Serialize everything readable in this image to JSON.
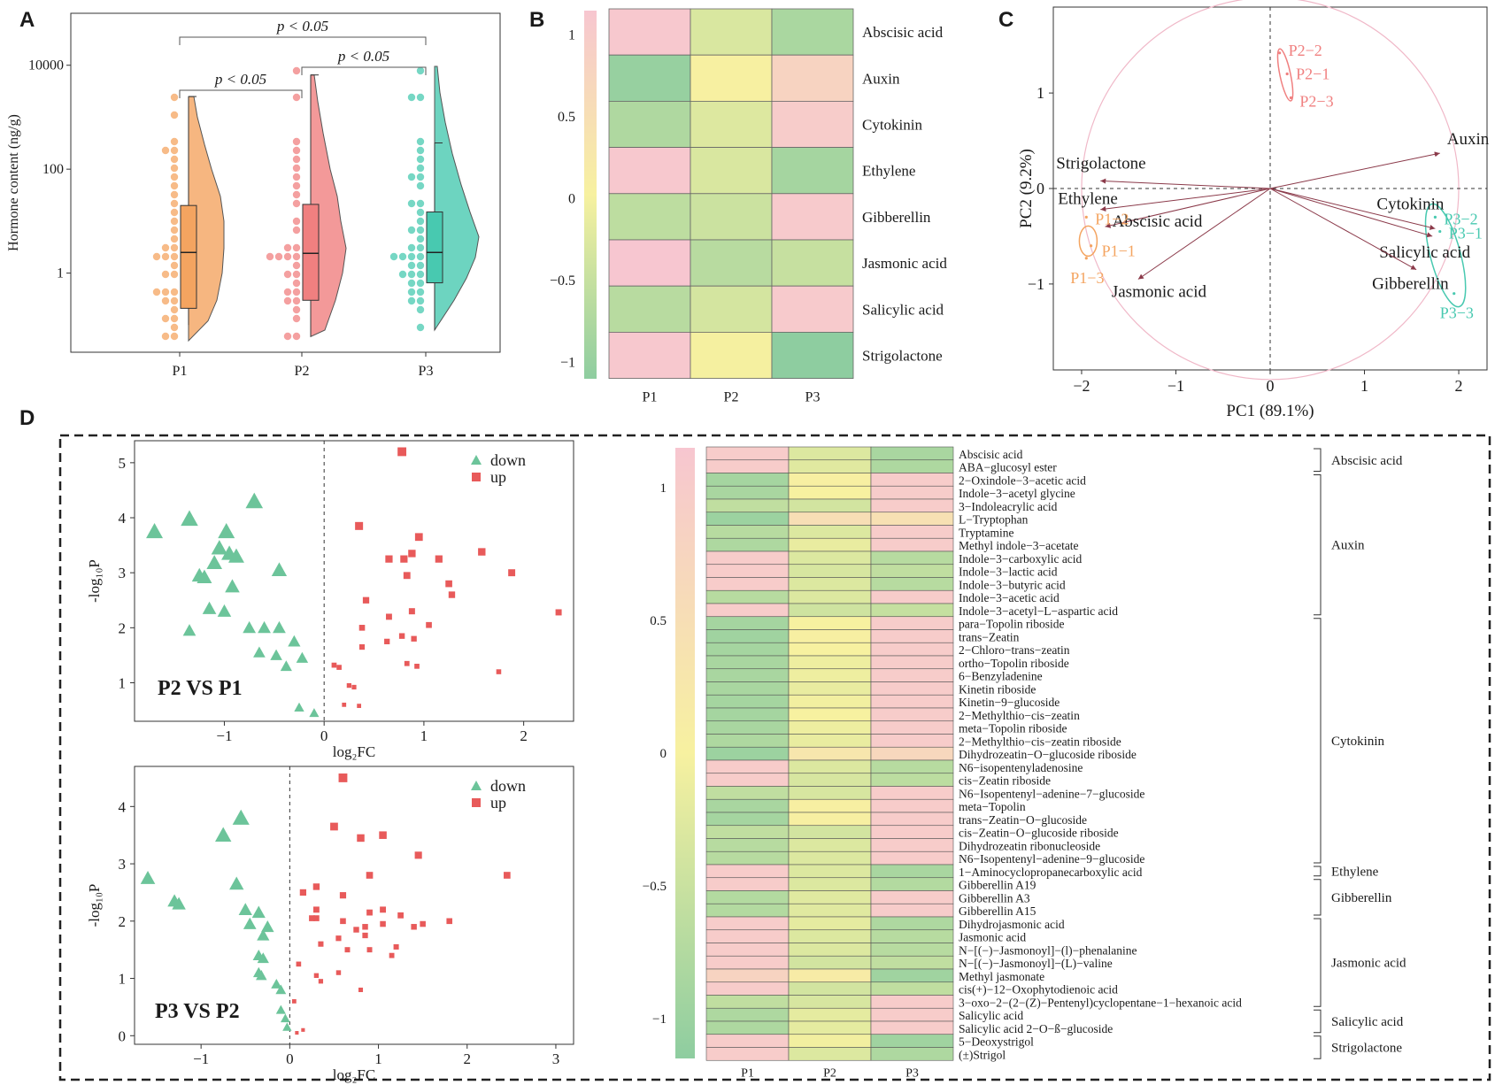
{
  "panel_labels": [
    "A",
    "B",
    "C",
    "D"
  ],
  "colors": {
    "orange": "#F4A460",
    "pink_red": "#F08080",
    "teal": "#48C9B0",
    "heat_high": "#F7C6D0",
    "heat_mid": "#F7F1A0",
    "heat_low": "#8ECDA0",
    "up": "#E85A5A",
    "down": "#6CC49A",
    "arrow": "#8B3A4A",
    "circle": "#F0B8C8"
  },
  "chart_data": [
    {
      "id": "A",
      "type": "raincloud",
      "title": "",
      "xlabel": "",
      "ylabel": "Hormone content (ng/g)",
      "yscale": "log",
      "ylim": [
        0.03,
        100000
      ],
      "yticks": [
        1,
        100,
        10000
      ],
      "ytick_labels": [
        "1",
        "100",
        "10000"
      ],
      "categories": [
        "P1",
        "P2",
        "P3"
      ],
      "boxes": [
        {
          "q1": 0.21,
          "median": 2.5,
          "q3": 20,
          "whisker_low": 0.1,
          "whisker_high": 2500
        },
        {
          "q1": 0.3,
          "median": 2.4,
          "q3": 21,
          "whisker_low": 0.06,
          "whisker_high": 6500
        },
        {
          "q1": 0.65,
          "median": 2.5,
          "q3": 15,
          "whisker_low": 0.08,
          "whisker_high": 320
        }
      ],
      "comparisons": [
        {
          "from": "P1",
          "to": "P2",
          "label": "p < 0.05"
        },
        {
          "from": "P2",
          "to": "P3",
          "label": "p < 0.05"
        },
        {
          "from": "P1",
          "to": "P3",
          "label": "p < 0.05"
        }
      ]
    },
    {
      "id": "B",
      "type": "heatmap",
      "columns": [
        "P1",
        "P2",
        "P3"
      ],
      "rows": [
        "Abscisic acid",
        "Auxin",
        "Cytokinin",
        "Ethylene",
        "Gibberellin",
        "Jasmonic acid",
        "Salicylic acid",
        "Strigolactone"
      ],
      "values": [
        [
          1.1,
          -0.3,
          -0.8
        ],
        [
          -1.0,
          0.05,
          0.8
        ],
        [
          -0.75,
          -0.25,
          1.0
        ],
        [
          1.1,
          -0.3,
          -0.85
        ],
        [
          -0.6,
          -0.45,
          1.05
        ],
        [
          1.15,
          -0.65,
          -0.5
        ],
        [
          -0.65,
          -0.35,
          1.05
        ],
        [
          1.1,
          0.0,
          -1.1
        ]
      ],
      "colorbar_range": [
        -1.1,
        1.15
      ],
      "colorbar_ticks": [
        1,
        0.5,
        0,
        -0.5,
        -1
      ],
      "colorbar_tick_labels": [
        "1",
        "0.5",
        "0",
        "−0.5",
        "−1"
      ]
    },
    {
      "id": "C",
      "type": "pca_biplot",
      "xlabel": "PC1 (89.1%)",
      "ylabel": "PC2 (9.2%)",
      "xlim": [
        -2.3,
        2.3
      ],
      "ylim": [
        -1.9,
        1.9
      ],
      "xticks": [
        -2,
        -1,
        0,
        1,
        2
      ],
      "xtick_labels": [
        "−2",
        "−1",
        "0",
        "1",
        "2"
      ],
      "yticks": [
        1,
        0,
        -1
      ],
      "ytick_labels": [
        "1",
        "0",
        "−1"
      ],
      "samples": [
        {
          "label": "P1−2",
          "x": -1.95,
          "y": -0.3,
          "group": "P1"
        },
        {
          "label": "P1−1",
          "x": -1.9,
          "y": -0.6,
          "group": "P1"
        },
        {
          "label": "P1−3",
          "x": -1.95,
          "y": -0.73,
          "group": "P1"
        },
        {
          "label": "P2−2",
          "x": 0.1,
          "y": 1.42,
          "group": "P2"
        },
        {
          "label": "P2−1",
          "x": 0.18,
          "y": 1.2,
          "group": "P2"
        },
        {
          "label": "P2−3",
          "x": 0.22,
          "y": 0.95,
          "group": "P2"
        },
        {
          "label": "P3−2",
          "x": 1.75,
          "y": -0.3,
          "group": "P3"
        },
        {
          "label": "P3−1",
          "x": 1.8,
          "y": -0.45,
          "group": "P3"
        },
        {
          "label": "P3−3",
          "x": 1.95,
          "y": -1.1,
          "group": "P3"
        }
      ],
      "loadings": [
        {
          "label": "Auxin",
          "x": 1.8,
          "y": 0.37
        },
        {
          "label": "Strigolactone",
          "x": -1.8,
          "y": 0.08
        },
        {
          "label": "Ethylene",
          "x": -1.8,
          "y": -0.22
        },
        {
          "label": "Abscisic acid",
          "x": -1.75,
          "y": -0.4
        },
        {
          "label": "Jasmonic acid",
          "x": -1.4,
          "y": -0.95
        },
        {
          "label": "Cytokinin",
          "x": 1.75,
          "y": -0.42
        },
        {
          "label": "Salicylic acid",
          "x": 1.72,
          "y": -0.5
        },
        {
          "label": "Gibberellin",
          "x": 1.55,
          "y": -0.85
        }
      ]
    },
    {
      "id": "D-volcano-1",
      "type": "scatter",
      "title": "P2 VS P1",
      "xlabel": "log₂FC",
      "ylabel": "-log₁₀P",
      "xlim": [
        -1.9,
        2.5
      ],
      "ylim": [
        0.3,
        5.4
      ],
      "xticks": [
        -1,
        0,
        1,
        2
      ],
      "xtick_labels": [
        "−1",
        "0",
        "1",
        "2"
      ],
      "yticks": [
        1,
        2,
        3,
        4,
        5
      ],
      "ytick_labels": [
        "1",
        "2",
        "3",
        "4",
        "5"
      ],
      "legend": [
        "down",
        "up"
      ],
      "down": [
        [
          -1.7,
          3.75
        ],
        [
          -1.35,
          3.98
        ],
        [
          -0.98,
          3.75
        ],
        [
          -0.7,
          4.3
        ],
        [
          -0.95,
          3.35
        ],
        [
          -1.05,
          3.45
        ],
        [
          -0.88,
          3.3
        ],
        [
          -1.1,
          3.18
        ],
        [
          -1.25,
          2.95
        ],
        [
          -1.2,
          2.92
        ],
        [
          -0.92,
          2.75
        ],
        [
          -0.45,
          3.05
        ],
        [
          -1.15,
          2.35
        ],
        [
          -1.0,
          2.3
        ],
        [
          -1.35,
          1.95
        ],
        [
          -0.75,
          2.0
        ],
        [
          -0.6,
          2.0
        ],
        [
          -0.45,
          2.0
        ],
        [
          -0.3,
          1.75
        ],
        [
          -0.65,
          1.55
        ],
        [
          -0.48,
          1.5
        ],
        [
          -0.38,
          1.3
        ],
        [
          -0.22,
          1.45
        ],
        [
          -0.25,
          0.55
        ],
        [
          -0.1,
          0.45
        ]
      ],
      "up": [
        [
          0.78,
          5.2
        ],
        [
          0.35,
          3.85
        ],
        [
          0.95,
          3.65
        ],
        [
          0.88,
          3.35
        ],
        [
          0.65,
          3.25
        ],
        [
          0.8,
          3.25
        ],
        [
          1.15,
          3.25
        ],
        [
          1.58,
          3.38
        ],
        [
          0.83,
          2.95
        ],
        [
          1.25,
          2.8
        ],
        [
          1.88,
          3.0
        ],
        [
          1.28,
          2.6
        ],
        [
          0.42,
          2.5
        ],
        [
          2.35,
          2.28
        ],
        [
          0.65,
          2.2
        ],
        [
          0.88,
          2.3
        ],
        [
          1.05,
          2.05
        ],
        [
          0.38,
          2.0
        ],
        [
          0.78,
          1.85
        ],
        [
          0.63,
          1.75
        ],
        [
          0.9,
          1.8
        ],
        [
          0.38,
          1.65
        ],
        [
          0.83,
          1.35
        ],
        [
          0.93,
          1.3
        ],
        [
          1.75,
          1.2
        ],
        [
          0.1,
          1.32
        ],
        [
          0.15,
          1.28
        ],
        [
          0.25,
          0.95
        ],
        [
          0.3,
          0.92
        ],
        [
          0.2,
          0.6
        ],
        [
          0.35,
          0.58
        ]
      ]
    },
    {
      "id": "D-volcano-2",
      "type": "scatter",
      "title": "P3 VS P2",
      "xlabel": "log₂FC",
      "ylabel": "-log₁₀P",
      "xlim": [
        -1.75,
        3.2
      ],
      "ylim": [
        -0.15,
        4.7
      ],
      "xticks": [
        -1,
        0,
        1,
        2,
        3
      ],
      "xtick_labels": [
        "−1",
        "0",
        "1",
        "2",
        "3"
      ],
      "yticks": [
        0,
        1,
        2,
        3,
        4
      ],
      "ytick_labels": [
        "0",
        "1",
        "2",
        "3",
        "4"
      ],
      "legend": [
        "down",
        "up"
      ],
      "down": [
        [
          -0.55,
          3.8
        ],
        [
          -0.75,
          3.5
        ],
        [
          -1.6,
          2.75
        ],
        [
          -1.3,
          2.35
        ],
        [
          -1.25,
          2.3
        ],
        [
          -0.6,
          2.65
        ],
        [
          -0.5,
          2.2
        ],
        [
          -0.35,
          2.15
        ],
        [
          -0.45,
          1.95
        ],
        [
          -0.25,
          1.9
        ],
        [
          -0.3,
          1.75
        ],
        [
          -0.35,
          1.4
        ],
        [
          -0.3,
          1.35
        ],
        [
          -0.35,
          1.1
        ],
        [
          -0.32,
          1.05
        ],
        [
          -0.15,
          0.9
        ],
        [
          -0.1,
          0.8
        ],
        [
          -0.1,
          0.45
        ],
        [
          -0.05,
          0.3
        ],
        [
          -0.03,
          0.15
        ]
      ],
      "up": [
        [
          0.6,
          4.5
        ],
        [
          0.5,
          3.65
        ],
        [
          0.8,
          3.45
        ],
        [
          1.05,
          3.5
        ],
        [
          1.45,
          3.15
        ],
        [
          2.45,
          2.8
        ],
        [
          0.9,
          2.8
        ],
        [
          0.3,
          2.6
        ],
        [
          0.15,
          2.5
        ],
        [
          0.6,
          2.45
        ],
        [
          0.3,
          2.2
        ],
        [
          0.25,
          2.05
        ],
        [
          0.3,
          2.05
        ],
        [
          0.9,
          2.15
        ],
        [
          1.05,
          2.2
        ],
        [
          1.25,
          2.1
        ],
        [
          1.05,
          1.95
        ],
        [
          1.8,
          2.0
        ],
        [
          0.6,
          2.0
        ],
        [
          1.5,
          1.95
        ],
        [
          0.85,
          1.9
        ],
        [
          0.75,
          1.85
        ],
        [
          1.4,
          1.9
        ],
        [
          0.55,
          1.7
        ],
        [
          0.85,
          1.75
        ],
        [
          0.35,
          1.6
        ],
        [
          0.65,
          1.5
        ],
        [
          0.9,
          1.5
        ],
        [
          1.2,
          1.55
        ],
        [
          1.15,
          1.4
        ],
        [
          0.1,
          1.25
        ],
        [
          0.3,
          1.05
        ],
        [
          0.35,
          0.95
        ],
        [
          0.55,
          1.1
        ],
        [
          0.8,
          0.8
        ],
        [
          0.05,
          0.6
        ],
        [
          0.15,
          0.1
        ],
        [
          0.08,
          0.05
        ]
      ]
    },
    {
      "id": "D-heatmap",
      "type": "heatmap",
      "columns": [
        "P1",
        "P2",
        "P3"
      ],
      "colorbar_range": [
        -1.15,
        1.15
      ],
      "colorbar_ticks": [
        1,
        0.5,
        0,
        -0.5,
        -1
      ],
      "colorbar_tick_labels": [
        "1",
        "0.5",
        "0",
        "−0.5",
        "−1"
      ],
      "rows": [
        "Abscisic acid",
        "ABA−glucosyl ester",
        "2−Oxindole−3−acetic acid",
        "Indole−3−acetyl glycine",
        "3−Indoleacrylic acid",
        "L−Tryptophan",
        "Tryptamine",
        "Methyl indole−3−acetate",
        "Indole−3−carboxylic acid",
        "Indole−3−lactic acid",
        "Indole−3−butyric acid",
        "Indole−3−acetic acid",
        "Indole−3−acetyl−L−aspartic acid",
        "para−Topolin riboside",
        "trans−Zeatin",
        "2−Chloro−trans−zeatin",
        "ortho−Topolin riboside",
        "6−Benzyladenine",
        "Kinetin riboside",
        "Kinetin−9−glucoside",
        "2−Methylthio−cis−zeatin",
        "meta−Topolin riboside",
        "2−Methylthio−cis−zeatin riboside",
        "Dihydrozeatin−O−glucoside riboside",
        "N6−isopentenyladenosine",
        "cis−Zeatin riboside",
        "N6−Isopentenyl−adenine−7−glucoside",
        "meta−Topolin",
        "trans−Zeatin−O−glucoside",
        "cis−Zeatin−O−glucoside riboside",
        "Dihydrozeatin ribonucleoside",
        "N6−Isopentenyl−adenine−9−glucoside",
        "1−Aminocyclopropanecarboxylic acid",
        "Gibberellin A19",
        "Gibberellin A3",
        "Gibberellin A15",
        "Dihydrojasmonic acid",
        "Jasmonic acid",
        "N−[(−)−Jasmonoyl]−(l)−phenalanine",
        "N−[(−)−Jasmonoyl]−(L)−valine",
        "Methyl jasmonate",
        "cis(+)−12−Oxophytodienoic acid",
        "3−oxo−2−(2−(Z)−Pentenyl)cyclopentane−1−hexanoic acid",
        "Salicylic acid",
        "Salicylic acid 2−O−ß−glucoside",
        "5−Deoxystrigol",
        "(±)Strigol"
      ],
      "values": [
        [
          1,
          -0.3,
          -0.85
        ],
        [
          1,
          -0.25,
          -0.8
        ],
        [
          -0.9,
          0.05,
          1
        ],
        [
          -0.85,
          0,
          1
        ],
        [
          -0.6,
          -0.4,
          1
        ],
        [
          -1,
          0.5,
          0.45
        ],
        [
          -0.7,
          -0.3,
          1
        ],
        [
          -0.8,
          -0.15,
          1
        ],
        [
          1,
          -0.3,
          -0.7
        ],
        [
          1,
          -0.35,
          -0.6
        ],
        [
          1,
          -0.3,
          -0.7
        ],
        [
          -0.7,
          -0.3,
          1
        ],
        [
          1,
          -0.45,
          -0.55
        ],
        [
          -0.9,
          0,
          1
        ],
        [
          -0.95,
          0.05,
          1
        ],
        [
          -0.9,
          0,
          1
        ],
        [
          -0.85,
          -0.1,
          1
        ],
        [
          -0.85,
          -0.1,
          1
        ],
        [
          -0.85,
          -0.15,
          1
        ],
        [
          -0.9,
          -0.05,
          1
        ],
        [
          -0.9,
          0,
          1
        ],
        [
          -0.85,
          -0.1,
          1
        ],
        [
          -0.8,
          -0.15,
          1
        ],
        [
          -1,
          0.3,
          0.7
        ],
        [
          1,
          -0.3,
          -0.7
        ],
        [
          1,
          -0.35,
          -0.65
        ],
        [
          -0.6,
          -0.35,
          1
        ],
        [
          -0.85,
          0.05,
          1
        ],
        [
          -0.9,
          0.05,
          1
        ],
        [
          -0.6,
          -0.4,
          1
        ],
        [
          -0.7,
          -0.3,
          1
        ],
        [
          -0.7,
          -0.3,
          1
        ],
        [
          1,
          -0.3,
          -0.85
        ],
        [
          1,
          -0.3,
          -0.75
        ],
        [
          -0.75,
          -0.25,
          1
        ],
        [
          -0.75,
          -0.25,
          1
        ],
        [
          1,
          -0.2,
          -0.8
        ],
        [
          1,
          -0.3,
          -0.7
        ],
        [
          1,
          -0.3,
          -0.7
        ],
        [
          1,
          -0.4,
          -0.6
        ],
        [
          0.8,
          0.15,
          -0.95
        ],
        [
          1,
          -0.4,
          -0.6
        ],
        [
          -0.6,
          -0.35,
          1
        ],
        [
          -0.8,
          -0.2,
          1
        ],
        [
          -0.8,
          -0.2,
          1
        ],
        [
          1,
          -0.05,
          -0.95
        ],
        [
          1,
          -0.3,
          -0.8
        ]
      ],
      "groups": [
        {
          "label": "Abscisic acid",
          "start": 0,
          "end": 1
        },
        {
          "label": "Auxin",
          "start": 2,
          "end": 12
        },
        {
          "label": "Cytokinin",
          "start": 13,
          "end": 31
        },
        {
          "label": "Ethylene",
          "start": 32,
          "end": 32
        },
        {
          "label": "Gibberellin",
          "start": 33,
          "end": 35
        },
        {
          "label": "Jasmonic acid",
          "start": 36,
          "end": 42
        },
        {
          "label": "Salicylic acid",
          "start": 43,
          "end": 44
        },
        {
          "label": "Strigolactone",
          "start": 45,
          "end": 46
        }
      ]
    }
  ]
}
